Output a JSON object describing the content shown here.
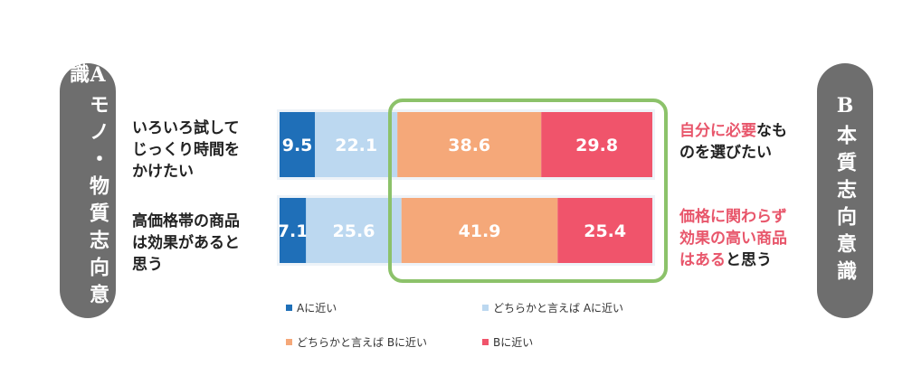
{
  "left_side_label": "Aモノ・物質志向意識",
  "right_side_label": "B本質志向意識",
  "colors": {
    "a_close": "#1f6fb8",
    "a_somewhat": "#bcd8f0",
    "b_somewhat": "#f5a879",
    "b_close": "#f0546b",
    "frame": "#8cc26a",
    "highlight_text": "#e8566b"
  },
  "rows": [
    {
      "left_lines": [
        "いろいろ試して",
        "じっくり時間を",
        "かけたい"
      ],
      "right_parts": [
        [
          {
            "t": "自分に必要",
            "hl": true
          },
          {
            "t": "なも",
            "hl": false
          }
        ],
        [
          {
            "t": "のを選びたい",
            "hl": false
          }
        ]
      ]
    },
    {
      "left_lines": [
        "高価格帯の商品",
        "は効果があると",
        "思う"
      ],
      "right_parts": [
        [
          {
            "t": "価格に関わらず",
            "hl": true
          }
        ],
        [
          {
            "t": "効果の高い商品",
            "hl": true
          }
        ],
        [
          {
            "t": "はある",
            "hl": true
          },
          {
            "t": "と思う",
            "hl": false
          }
        ]
      ]
    }
  ],
  "chart_data": {
    "type": "bar",
    "orientation": "horizontal",
    "stacked": "percent",
    "categories": [
      "いろいろ試してじっくり時間をかけたい",
      "高価格帯の商品は効果があると思う"
    ],
    "series": [
      {
        "name": "Aに近い",
        "values": [
          9.5,
          7.1
        ],
        "labels": [
          "9.5",
          "7.1"
        ]
      },
      {
        "name": "どちらかと言えば Aに近い",
        "values": [
          22.1,
          25.6
        ],
        "labels": [
          "22.1",
          "25.6"
        ]
      },
      {
        "name": "どちらかと言えば Bに近い",
        "values": [
          38.6,
          41.9
        ],
        "labels": [
          "38.6",
          "41.9"
        ]
      },
      {
        "name": "Bに近い",
        "values": [
          29.8,
          25.4
        ],
        "labels": [
          "29.8",
          "25.4"
        ]
      }
    ],
    "legend": "bottom",
    "grid": false
  }
}
